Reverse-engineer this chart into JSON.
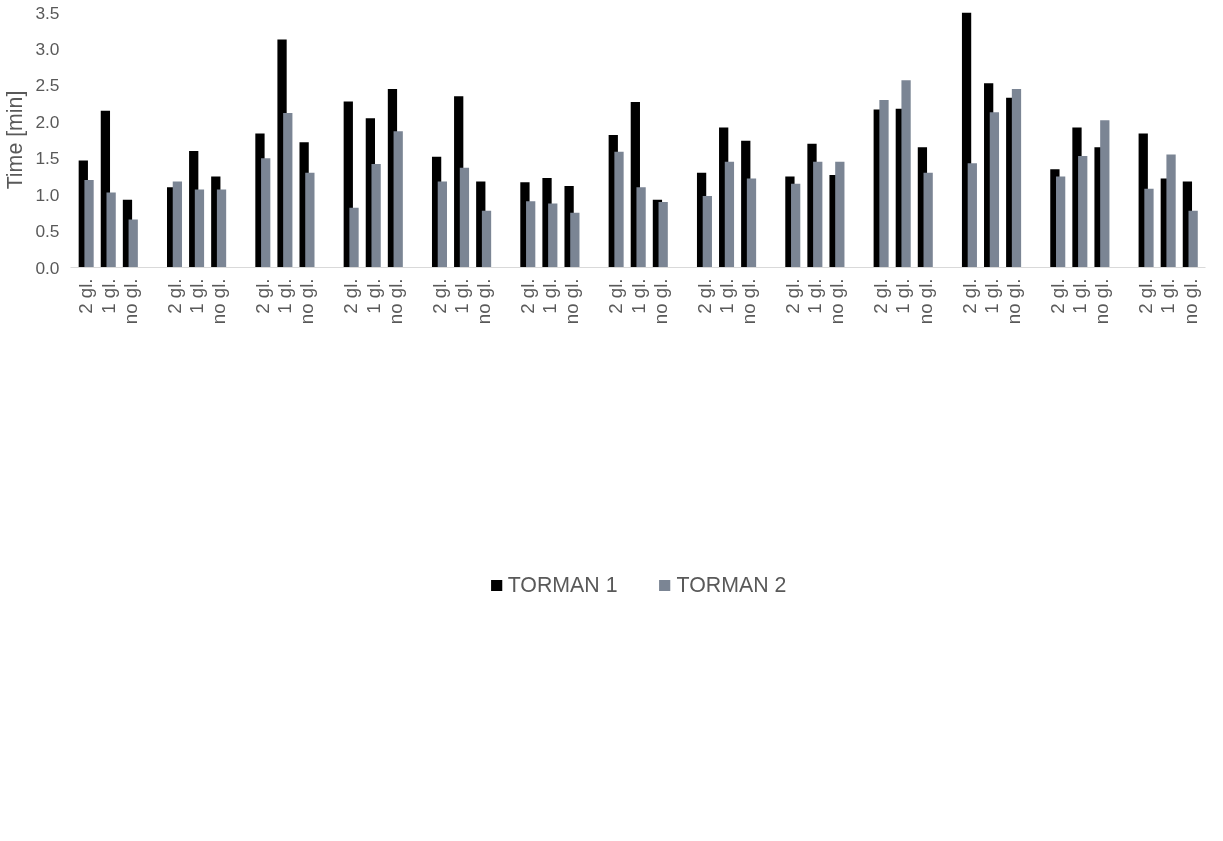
{
  "chart_data": {
    "type": "bar",
    "ylabel": "Time [min]",
    "categories": [
      "2 gl.",
      "1 gl.",
      "no gl.",
      null,
      "2 gl.",
      "1 gl.",
      "no gl.",
      null,
      "2 gl.",
      "1 gl.",
      "no gl.",
      null,
      "2 gl.",
      "1 gl.",
      "no gl.",
      null,
      "2 gl.",
      "1 gl.",
      "no gl.",
      null,
      "2 gl.",
      "1 gl.",
      "no gl.",
      null,
      "2 gl.",
      "1 gl.",
      "no gl.",
      null,
      "2 gl.",
      "1 gl.",
      "no gl.",
      null,
      "2 gl.",
      "1 gl.",
      "no gl.",
      null,
      "2 gl.",
      "1 gl.",
      "no gl.",
      null,
      "2 gl.",
      "1 gl.",
      "no gl.",
      null,
      "2 gl.",
      "1 gl.",
      "no gl.",
      null,
      "2 gl.",
      "1 gl.",
      "no gl."
    ],
    "series": [
      {
        "name": "TORMAN 1",
        "color": "#000000",
        "values": [
          1.47,
          2.15,
          0.93,
          null,
          1.1,
          1.6,
          1.25,
          null,
          1.84,
          3.13,
          1.72,
          null,
          2.28,
          2.05,
          2.45,
          null,
          1.52,
          2.35,
          1.18,
          null,
          1.17,
          1.23,
          1.12,
          null,
          1.82,
          2.27,
          0.93,
          null,
          1.3,
          1.92,
          1.74,
          null,
          1.25,
          1.7,
          1.27,
          null,
          2.17,
          2.18,
          1.65,
          null,
          3.5,
          2.53,
          2.33,
          null,
          1.35,
          1.92,
          1.65,
          null,
          1.84,
          1.22,
          1.18
        ]
      },
      {
        "name": "TORMAN 2",
        "color": "#7b8594",
        "values": [
          1.2,
          1.03,
          0.66,
          null,
          1.18,
          1.07,
          1.07,
          null,
          1.5,
          2.12,
          1.3,
          null,
          0.82,
          1.42,
          1.87,
          null,
          1.18,
          1.37,
          0.78,
          null,
          0.91,
          0.88,
          0.75,
          null,
          1.59,
          1.1,
          0.9,
          null,
          0.98,
          1.45,
          1.22,
          null,
          1.15,
          1.45,
          1.45,
          null,
          2.3,
          2.57,
          1.3,
          null,
          1.43,
          2.13,
          2.45,
          null,
          1.25,
          1.53,
          2.02,
          null,
          1.08,
          1.55,
          0.78
        ]
      }
    ],
    "ylim": [
      0,
      3.5
    ],
    "yticks": [
      {
        "value": 0,
        "label": "0.0"
      },
      {
        "value": 0.5,
        "label": "0.5"
      },
      {
        "value": 1,
        "label": "1.0"
      },
      {
        "value": 1.5,
        "label": "1.5"
      },
      {
        "value": 2,
        "label": "2.0"
      },
      {
        "value": 2.5,
        "label": "2.5"
      },
      {
        "value": 3,
        "label": "3.0"
      },
      {
        "value": 3.5,
        "label": "3.5"
      }
    ],
    "grid": false,
    "legend": "bottom"
  }
}
